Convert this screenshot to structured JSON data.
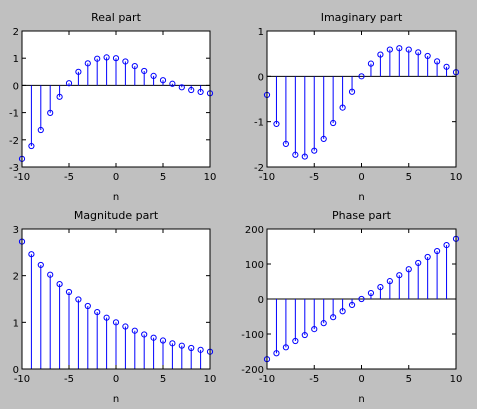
{
  "colors": {
    "figure_bg": "#c0c0c0",
    "axes_bg": "#ffffff",
    "stem": "#0000ff",
    "baseline": "#000000"
  },
  "chart_data": [
    {
      "type": "stem",
      "title": "Real part",
      "xlabel": "n",
      "ylabel": "",
      "xlim": [
        -10,
        10
      ],
      "ylim": [
        -3,
        2
      ],
      "xticks": [
        "-10",
        "-5",
        "0",
        "5",
        "10"
      ],
      "yticks": [
        "-3",
        "-2",
        "-1",
        "0",
        "1",
        "2"
      ],
      "grid": false,
      "x": [
        -10,
        -9,
        -8,
        -7,
        -6,
        -5,
        -4,
        -3,
        -2,
        -1,
        0,
        1,
        2,
        3,
        4,
        5,
        6,
        7,
        8,
        9,
        10
      ],
      "y": [
        -2.7,
        -2.23,
        -1.64,
        -1.01,
        -0.42,
        0.08,
        0.5,
        0.81,
        0.98,
        1.03,
        1.0,
        0.88,
        0.71,
        0.53,
        0.35,
        0.19,
        0.06,
        -0.07,
        -0.17,
        -0.24,
        -0.29
      ]
    },
    {
      "type": "stem",
      "title": "Imaginary part",
      "xlabel": "n",
      "ylabel": "",
      "xlim": [
        -10,
        10
      ],
      "ylim": [
        -2,
        1
      ],
      "xticks": [
        "-10",
        "-5",
        "0",
        "5",
        "10"
      ],
      "yticks": [
        "-2",
        "-1",
        "0",
        "1"
      ],
      "grid": false,
      "x": [
        -10,
        -9,
        -8,
        -7,
        -6,
        -5,
        -4,
        -3,
        -2,
        -1,
        0,
        1,
        2,
        3,
        4,
        5,
        6,
        7,
        8,
        9,
        10
      ],
      "y": [
        -0.41,
        -1.05,
        -1.49,
        -1.73,
        -1.77,
        -1.64,
        -1.38,
        -1.03,
        -0.69,
        -0.34,
        0.0,
        0.28,
        0.48,
        0.59,
        0.62,
        0.59,
        0.53,
        0.45,
        0.33,
        0.21,
        0.09
      ]
    },
    {
      "type": "stem",
      "title": "Magnitude part",
      "xlabel": "n",
      "ylabel": "",
      "xlim": [
        -10,
        10
      ],
      "ylim": [
        0,
        3
      ],
      "xticks": [
        "-10",
        "-5",
        "0",
        "5",
        "10"
      ],
      "yticks": [
        "0",
        "1",
        "2",
        "3"
      ],
      "grid": false,
      "x": [
        -10,
        -9,
        -8,
        -7,
        -6,
        -5,
        -4,
        -3,
        -2,
        -1,
        0,
        1,
        2,
        3,
        4,
        5,
        6,
        7,
        8,
        9,
        10
      ],
      "y": [
        2.73,
        2.46,
        2.23,
        2.02,
        1.82,
        1.65,
        1.49,
        1.35,
        1.22,
        1.1,
        1.0,
        0.91,
        0.82,
        0.74,
        0.67,
        0.61,
        0.55,
        0.5,
        0.45,
        0.41,
        0.37
      ]
    },
    {
      "type": "stem",
      "title": "Phase part",
      "xlabel": "n",
      "ylabel": "",
      "xlim": [
        -10,
        10
      ],
      "ylim": [
        -200,
        200
      ],
      "xticks": [
        "-10",
        "-5",
        "0",
        "5",
        "10"
      ],
      "yticks": [
        "-200",
        "-100",
        "0",
        "100",
        "200"
      ],
      "grid": false,
      "x": [
        -10,
        -9,
        -8,
        -7,
        -6,
        -5,
        -4,
        -3,
        -2,
        -1,
        0,
        1,
        2,
        3,
        4,
        5,
        6,
        7,
        8,
        9,
        10
      ],
      "y": [
        -172,
        -155,
        -138,
        -120,
        -103,
        -86,
        -69,
        -52,
        -35,
        -17,
        0,
        17,
        34,
        51,
        68,
        85,
        103,
        120,
        137,
        154,
        172
      ]
    }
  ]
}
